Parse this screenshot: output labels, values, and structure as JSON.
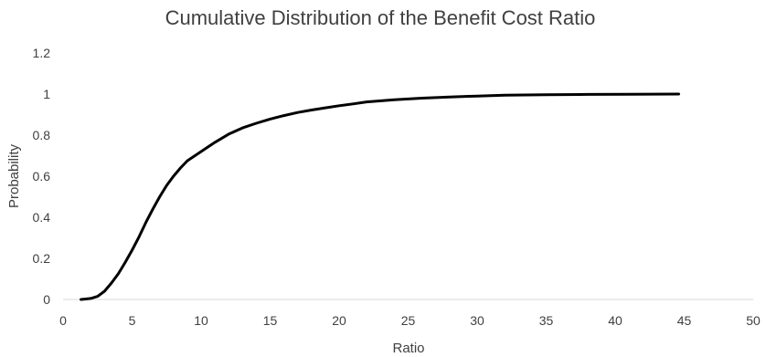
{
  "chart_data": {
    "type": "line",
    "title": "Cumulative Distribution of the Benefit Cost Ratio",
    "xlabel": "Ratio",
    "ylabel": "Probability",
    "xlim": [
      0,
      50
    ],
    "ylim": [
      0,
      1.2
    ],
    "xticks": [
      "0",
      "5",
      "10",
      "15",
      "20",
      "25",
      "30",
      "35",
      "40",
      "45",
      "50"
    ],
    "yticks": [
      "0",
      "0.2",
      "0.4",
      "0.6",
      "0.8",
      "1",
      "1.2"
    ],
    "grid": false,
    "legend": "none",
    "series": [
      {
        "color": "#000000",
        "x": [
          1.3,
          2.0,
          2.5,
          3.0,
          3.5,
          4.0,
          4.5,
          5.0,
          5.5,
          6.0,
          6.5,
          7.0,
          7.5,
          8.0,
          8.5,
          9.0,
          10.0,
          11.0,
          12.0,
          13.0,
          14.0,
          15.0,
          16.0,
          17.0,
          18.0,
          19.0,
          20.0,
          21.0,
          22.0,
          24.0,
          26.0,
          28.0,
          30.0,
          32.0,
          35.0,
          38.0,
          41.0,
          44.6
        ],
        "y": [
          0.0,
          0.005,
          0.015,
          0.04,
          0.08,
          0.125,
          0.18,
          0.24,
          0.305,
          0.375,
          0.44,
          0.5,
          0.555,
          0.6,
          0.64,
          0.675,
          0.72,
          0.765,
          0.805,
          0.835,
          0.858,
          0.878,
          0.895,
          0.91,
          0.922,
          0.933,
          0.943,
          0.952,
          0.962,
          0.972,
          0.98,
          0.986,
          0.99,
          0.994,
          0.997,
          0.998,
          0.999,
          1.0
        ]
      }
    ]
  }
}
